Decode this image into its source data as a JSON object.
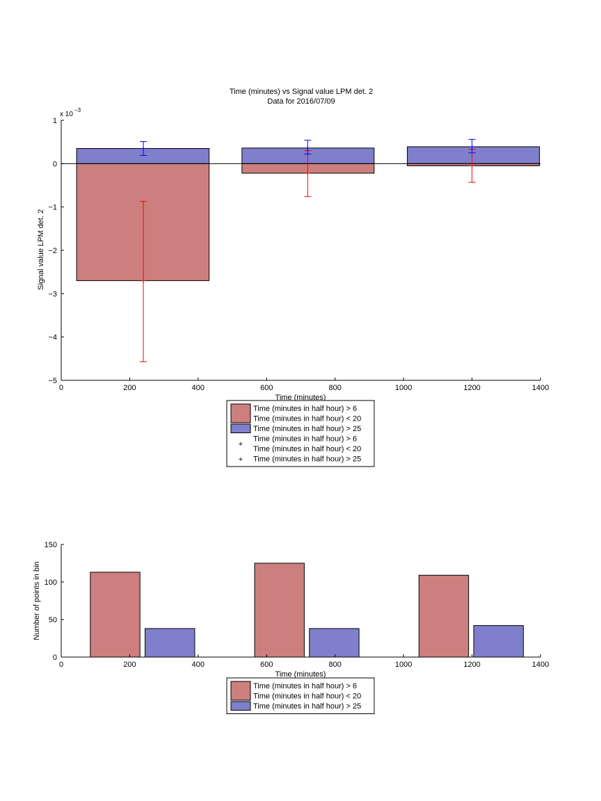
{
  "colors": {
    "red_fill": "#cc7f7e",
    "blue_fill": "#7f7fcc",
    "red_err": "#ff0000",
    "blue_err": "#0000ff",
    "axis": "#000000"
  },
  "chart_data": [
    {
      "type": "bar",
      "title": "Time (minutes) vs Signal value LPM det. 2",
      "subtitle": "Data for 2016/07/09",
      "xlabel": "Time (minutes)",
      "ylabel": "Signal value LPM det. 2",
      "y_exponent_label": "x 10",
      "y_exponent_power": "−3",
      "xlim": [
        0,
        1400
      ],
      "ylim": [
        -5,
        1
      ],
      "y_scale_factor": 0.001,
      "x_ticks": [
        "0",
        "200",
        "400",
        "600",
        "800",
        "1000",
        "1200",
        "1400"
      ],
      "y_ticks": [
        "−5",
        "−4",
        "−3",
        "−2",
        "−1",
        "0",
        "1"
      ],
      "bars": [
        {
          "series": 0,
          "x_range": [
            45,
            432
          ],
          "value": -2.7
        },
        {
          "series": 1,
          "x_range": [
            45,
            432
          ],
          "value": 0.35
        },
        {
          "series": 0,
          "x_range": [
            528,
            914
          ],
          "value": -0.22
        },
        {
          "series": 1,
          "x_range": [
            528,
            914
          ],
          "value": 0.36
        },
        {
          "series": 0,
          "x_range": [
            1011,
            1397
          ],
          "value": -0.05
        },
        {
          "series": 1,
          "x_range": [
            1011,
            1397
          ],
          "value": 0.39
        }
      ],
      "error_bars": [
        {
          "series": 0,
          "x": 240,
          "low": -4.57,
          "high": -0.87,
          "center": -2.7
        },
        {
          "series": 1,
          "x": 240,
          "low": 0.19,
          "high": 0.51,
          "center": 0.35
        },
        {
          "series": 0,
          "x": 720,
          "low": -0.76,
          "high": 0.3,
          "center": -0.22
        },
        {
          "series": 1,
          "x": 720,
          "low": 0.22,
          "high": 0.54,
          "center": 0.36
        },
        {
          "series": 0,
          "x": 1200,
          "low": -0.43,
          "high": 0.33,
          "center": -0.05
        },
        {
          "series": 1,
          "x": 1200,
          "low": 0.25,
          "high": 0.56,
          "center": 0.39
        }
      ],
      "series": [
        {
          "name": "Time (minutes in half hour) > 6 Time (minutes in half hour) < 20",
          "color": "#cc7f7e"
        },
        {
          "name": "Time (minutes in half hour) > 25",
          "color": "#7f7fcc"
        }
      ],
      "legend": {
        "placement": "below",
        "entries": [
          {
            "kind": "patch",
            "series": 0,
            "lines": [
              "Time (minutes in half hour) > 6",
              "Time (minutes in half hour) < 20"
            ]
          },
          {
            "kind": "patch",
            "series": 1,
            "lines": [
              "Time (minutes in half hour) > 25"
            ]
          },
          {
            "kind": "marker",
            "series": 0,
            "lines": [
              "Time (minutes in half hour) > 6",
              "Time (minutes in half hour) < 20"
            ]
          },
          {
            "kind": "marker",
            "series": 1,
            "lines": [
              "Time (minutes in half hour) > 25"
            ]
          }
        ]
      }
    },
    {
      "type": "bar",
      "title": "",
      "xlabel": "Time (minutes)",
      "ylabel": "Number of points in bin",
      "xlim": [
        0,
        1400
      ],
      "ylim": [
        0,
        150
      ],
      "x_ticks": [
        "0",
        "200",
        "400",
        "600",
        "800",
        "1000",
        "1200",
        "1400"
      ],
      "y_ticks": [
        "0",
        "50",
        "100",
        "150"
      ],
      "bars": [
        {
          "series": 0,
          "x_range": [
            85,
            230
          ],
          "value": 113
        },
        {
          "series": 1,
          "x_range": [
            245,
            390
          ],
          "value": 38
        },
        {
          "series": 0,
          "x_range": [
            565,
            710
          ],
          "value": 125
        },
        {
          "series": 1,
          "x_range": [
            725,
            870
          ],
          "value": 38
        },
        {
          "series": 0,
          "x_range": [
            1045,
            1190
          ],
          "value": 109
        },
        {
          "series": 1,
          "x_range": [
            1205,
            1350
          ],
          "value": 42
        }
      ],
      "series": [
        {
          "name": "Time (minutes in half hour) > 6 Time (minutes in half hour) < 20",
          "color": "#cc7f7e"
        },
        {
          "name": "Time (minutes in half hour) > 25",
          "color": "#7f7fcc"
        }
      ],
      "legend": {
        "placement": "below",
        "entries": [
          {
            "kind": "patch",
            "series": 0,
            "lines": [
              "Time (minutes in half hour) > 6",
              "Time (minutes in half hour) < 20"
            ]
          },
          {
            "kind": "patch",
            "series": 1,
            "lines": [
              "Time (minutes in half hour) > 25"
            ]
          }
        ]
      }
    }
  ]
}
